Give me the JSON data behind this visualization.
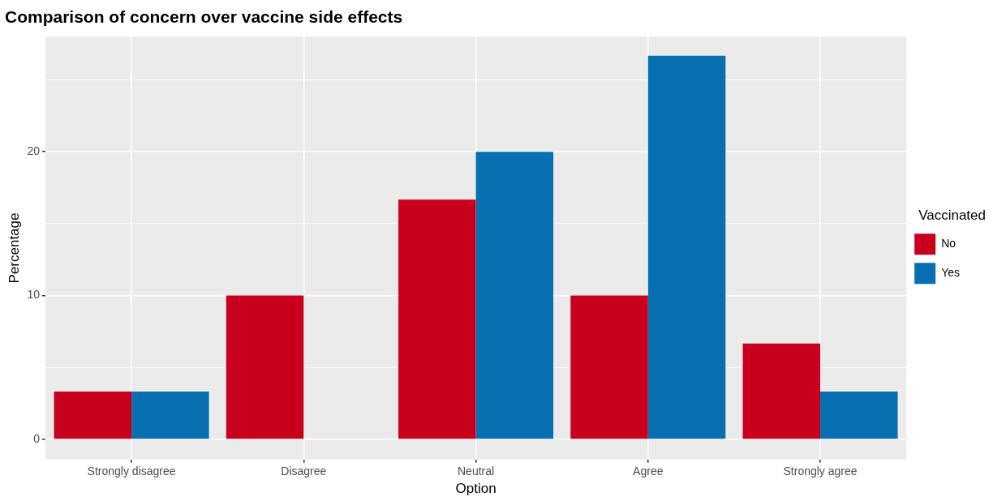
{
  "chart_data": {
    "type": "bar",
    "title": "Comparison of concern over vaccine side effects",
    "xlabel": "Option",
    "ylabel": "Percentage",
    "legend_title": "Vaccinated",
    "categories": [
      "Strongly disagree",
      "Disagree",
      "Neutral",
      "Agree",
      "Strongly agree"
    ],
    "series": [
      {
        "name": "No",
        "color": "#c8001e",
        "values": [
          3.33,
          10,
          16.67,
          10,
          6.67
        ]
      },
      {
        "name": "Yes",
        "color": "#0870b0",
        "values": [
          3.33,
          0,
          20,
          26.67,
          3.33
        ]
      }
    ],
    "ylim": [
      -1.4,
      28
    ],
    "yticks": [
      0,
      {
        "value": 5,
        "label": null
      },
      10,
      {
        "value": 15,
        "label": null
      },
      20,
      {
        "value": 25,
        "label": null
      }
    ],
    "grid": true,
    "legend": "right"
  }
}
